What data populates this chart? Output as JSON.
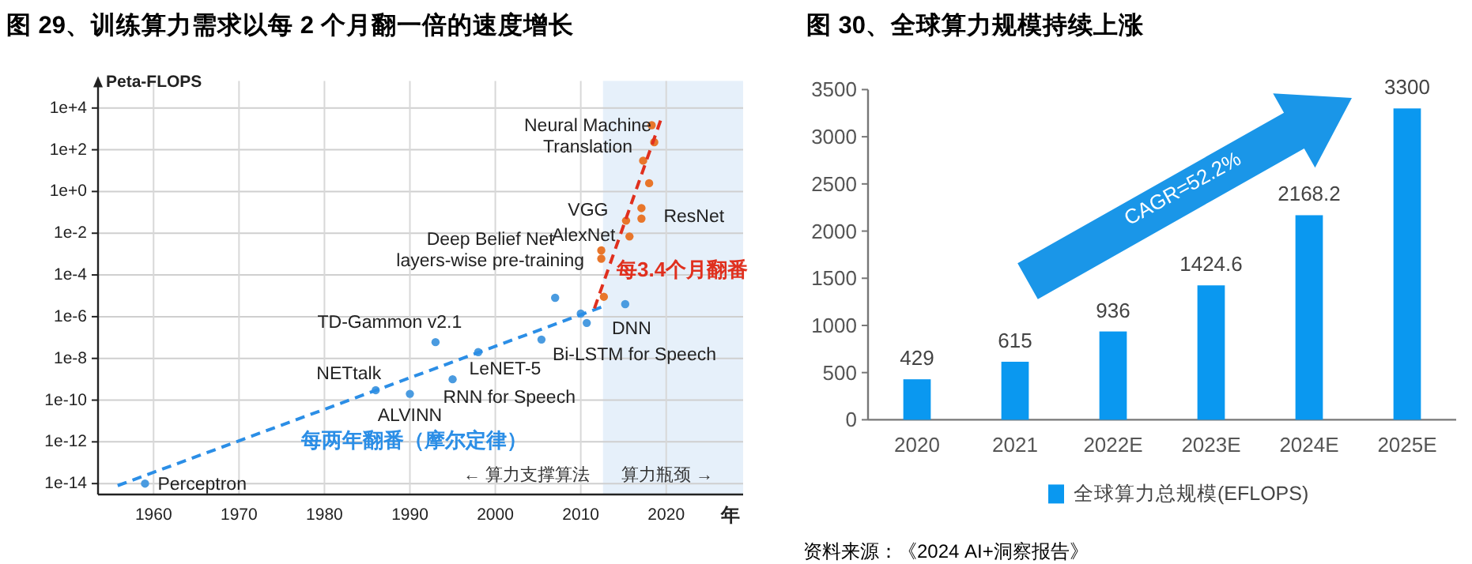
{
  "chart_data": [
    {
      "type": "scatter",
      "title": "图 29、训练算力需求以每 2 个月翻一倍的速度增长",
      "xlabel": "年",
      "ylabel": "Peta-FLOPS",
      "log": "y",
      "grid": true,
      "xlim": [
        1953.5,
        2029
      ],
      "xticks": [
        1960,
        1970,
        1980,
        1990,
        2000,
        2010,
        2020
      ],
      "ylim": [
        3e-15,
        200000.0
      ],
      "yticks": [
        {
          "value": 1e-14,
          "label": "1e-14"
        },
        {
          "value": 1e-12,
          "label": "1e-12"
        },
        {
          "value": 1e-10,
          "label": "1e-10"
        },
        {
          "value": 1e-08,
          "label": "1e-8"
        },
        {
          "value": 1e-06,
          "label": "1e-6"
        },
        {
          "value": 0.0001,
          "label": "1e-4"
        },
        {
          "value": 0.01,
          "label": "1e-2"
        },
        {
          "value": 1,
          "label": "1e+0"
        },
        {
          "value": 100,
          "label": "1e+2"
        },
        {
          "value": 10000,
          "label": "1e+4"
        }
      ],
      "bands": [
        {
          "axis": "x",
          "from": 2012.6,
          "to": 2029,
          "color": "#e6f0fa"
        }
      ],
      "series": [
        {
          "color": "#4a9be0",
          "x": [
            1959,
            1986,
            1990,
            1993,
            1995,
            1998,
            2005.4,
            2007,
            2010,
            2010.7,
            2015.2
          ],
          "values": [
            1e-14,
            3e-10,
            2e-10,
            6e-08,
            1e-09,
            2e-08,
            8e-08,
            8e-06,
            1.4e-06,
            5e-07,
            4e-06
          ]
        },
        {
          "color": "#e8762b",
          "x": [
            2012.7,
            2012.4,
            2012.4,
            2015.7,
            2015.3,
            2017.1,
            2017.1,
            2018,
            2017.3,
            2018.6,
            2018.3
          ],
          "values": [
            9e-06,
            0.0015,
            0.0006,
            0.007,
            0.04,
            0.16,
            0.05,
            2.5,
            30,
            230,
            1500
          ]
        },
        {
          "type": "line",
          "line_style": "dashed",
          "color": "#2b8ee6",
          "x": [
            1955.8,
            2012.9
          ],
          "values": [
            8e-15,
            3.4e-06
          ]
        },
        {
          "type": "line",
          "line_style": "dashed",
          "color": "#e0301e",
          "x": [
            2011.6,
            2019.4
          ],
          "values": [
            2.5e-06,
            3000
          ]
        }
      ],
      "annotations": [
        {
          "text": "Perceptron",
          "x": 1959,
          "y": 1e-14
        },
        {
          "text": "NETtalk",
          "x": 1986,
          "y": 3e-10
        },
        {
          "text": "ALVINN",
          "x": 1990,
          "y": 2e-10
        },
        {
          "text": "TD-Gammon v2.1",
          "x": 1993,
          "y": 6e-08
        },
        {
          "text": "RNN for Speech",
          "x": 1995,
          "y": 1e-09
        },
        {
          "text": "LeNET-5",
          "x": 1998,
          "y": 2e-08
        },
        {
          "text": "Bi-LSTM for Speech",
          "x": 2005.4,
          "y": 8e-08
        },
        {
          "text": "Deep Belief Net\nlayers-wise pre-training",
          "x": 2007,
          "y": 8e-06
        },
        {
          "text": "DNN",
          "x": 2015.2,
          "y": 4e-06
        },
        {
          "text": "VGG",
          "x": 2015.3,
          "y": 0.04
        },
        {
          "text": "AlexNet",
          "x": 2015.7,
          "y": 0.007
        },
        {
          "text": "ResNet",
          "x": 2017.1,
          "y": 0.16
        },
        {
          "text": "Neural Machine\nTranslation",
          "x": 2017.3,
          "y": 30
        },
        "每3.4个月翻番",
        "每两年翻番（摩尔定律）",
        "← 算力支撑算法",
        "算力瓶颈 →"
      ]
    },
    {
      "type": "bar",
      "title": "图 30、全球算力规模持续上涨",
      "categories": [
        "2020",
        "2021",
        "2022E",
        "2023E",
        "2024E",
        "2025E"
      ],
      "ylim": [
        0,
        3500
      ],
      "yticks": [
        0,
        500,
        1000,
        1500,
        2000,
        2500,
        3000,
        3500
      ],
      "data_labels": true,
      "legend": "bottom",
      "series": [
        {
          "name": "全球算力总规模(EFLOPS)",
          "color": "#0a98f0",
          "values": [
            429,
            615,
            936,
            1424.6,
            2168.2,
            3300
          ]
        }
      ],
      "annotations": [
        "CAGR=52.2%",
        "资料来源：《2024 AI+洞察报告》"
      ]
    }
  ]
}
